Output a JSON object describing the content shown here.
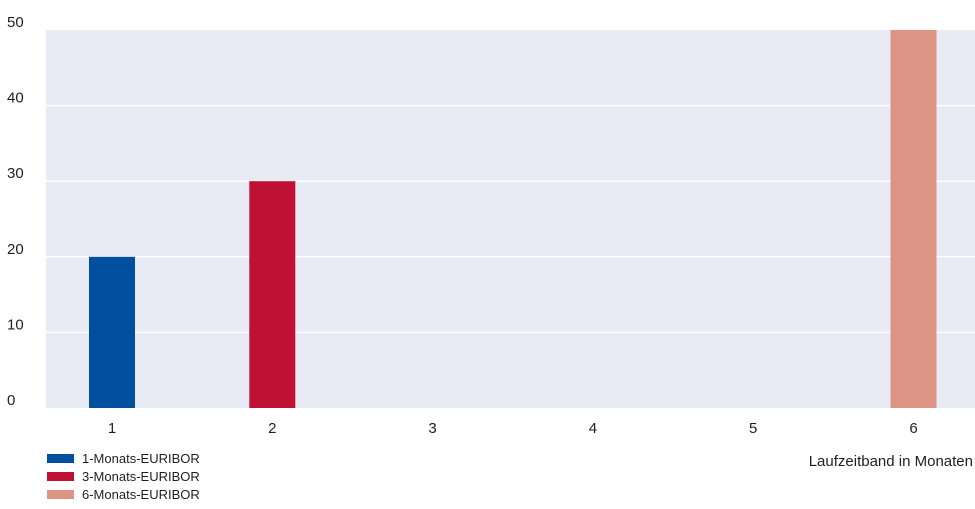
{
  "chart_data": {
    "type": "bar",
    "categories": [
      "1",
      "2",
      "3",
      "4",
      "5",
      "6"
    ],
    "series": [
      {
        "name": "1-Monats-EURIBOR",
        "color": "#004f9f",
        "values": [
          20,
          null,
          null,
          null,
          null,
          null
        ]
      },
      {
        "name": "3-Monats-EURIBOR",
        "color": "#be1133",
        "values": [
          null,
          30,
          null,
          null,
          null,
          null
        ]
      },
      {
        "name": "6-Monats-EURIBOR",
        "color": "#dc9485",
        "values": [
          null,
          null,
          null,
          null,
          null,
          50
        ]
      }
    ],
    "title": "",
    "xlabel": "Laufzeitband in Monaten",
    "ylabel": "",
    "ylim": [
      0,
      50
    ],
    "yticks": [
      0,
      10,
      20,
      30,
      40,
      50
    ],
    "grid": true,
    "legend_placement": "bottom-left",
    "background_color": "#e8eaf4",
    "grid_color": "#ffffff"
  }
}
